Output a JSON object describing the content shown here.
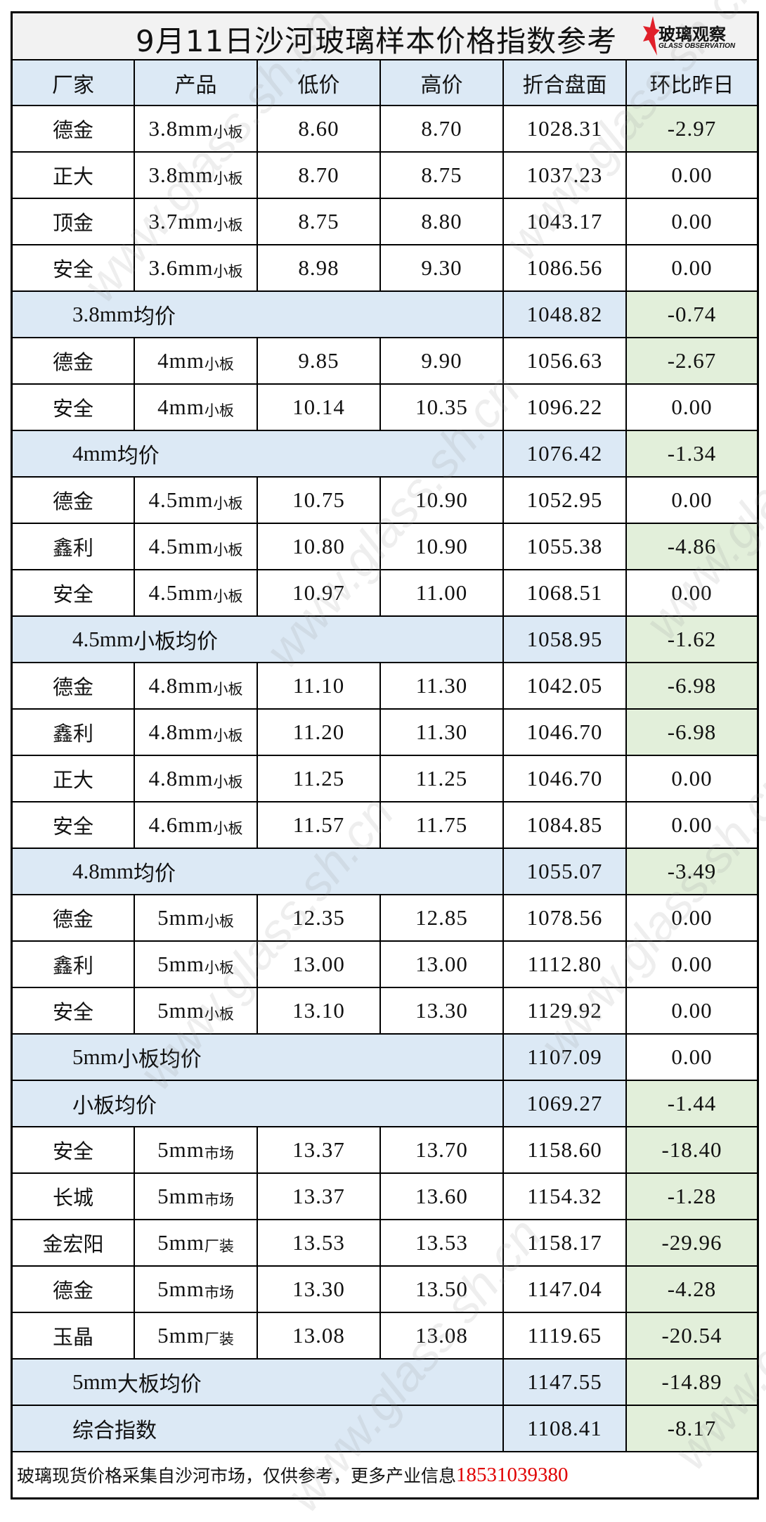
{
  "title": "9月11日沙河玻璃样本价格指数参考",
  "logo": {
    "cn": "玻璃观察",
    "en": "GLASS OBSERVATION",
    "color": "#e0202a"
  },
  "watermark": "www.glass.sh.cn",
  "colors": {
    "header_bg": "#dce9f5",
    "negative_bg": "#e2efda",
    "title_bg": "#f2f2f2",
    "phone": "#e00000"
  },
  "headers": [
    "厂家",
    "产品",
    "低价",
    "高价",
    "折合盘面",
    "环比昨日"
  ],
  "rows": [
    {
      "type": "item",
      "maker": "德金",
      "spec": "3.8mm",
      "kind": "小板",
      "low": "8.60",
      "high": "8.70",
      "index": "1028.31",
      "change": "-2.97"
    },
    {
      "type": "item",
      "maker": "正大",
      "spec": "3.8mm",
      "kind": "小板",
      "low": "8.70",
      "high": "8.75",
      "index": "1037.23",
      "change": "0.00"
    },
    {
      "type": "item",
      "maker": "顶金",
      "spec": "3.7mm",
      "kind": "小板",
      "low": "8.75",
      "high": "8.80",
      "index": "1043.17",
      "change": "0.00"
    },
    {
      "type": "item",
      "maker": "安全",
      "spec": "3.6mm",
      "kind": "小板",
      "low": "8.98",
      "high": "9.30",
      "index": "1086.56",
      "change": "0.00"
    },
    {
      "type": "avg",
      "spec": "3.8mm",
      "label": "均价",
      "index": "1048.82",
      "change": "-0.74"
    },
    {
      "type": "item",
      "maker": "德金",
      "spec": "4mm",
      "kind": "小板",
      "low": "9.85",
      "high": "9.90",
      "index": "1056.63",
      "change": "-2.67"
    },
    {
      "type": "item",
      "maker": "安全",
      "spec": "4mm",
      "kind": "小板",
      "low": "10.14",
      "high": "10.35",
      "index": "1096.22",
      "change": "0.00"
    },
    {
      "type": "avg",
      "spec": "4mm",
      "label": "均价",
      "index": "1076.42",
      "change": "-1.34"
    },
    {
      "type": "item",
      "maker": "德金",
      "spec": "4.5mm",
      "kind": "小板",
      "low": "10.75",
      "high": "10.90",
      "index": "1052.95",
      "change": "0.00"
    },
    {
      "type": "item",
      "maker": "鑫利",
      "spec": "4.5mm",
      "kind": "小板",
      "low": "10.80",
      "high": "10.90",
      "index": "1055.38",
      "change": "-4.86"
    },
    {
      "type": "item",
      "maker": "安全",
      "spec": "4.5mm",
      "kind": "小板",
      "low": "10.97",
      "high": "11.00",
      "index": "1068.51",
      "change": "0.00"
    },
    {
      "type": "avg",
      "spec": "4.5mm",
      "label": "小板均价",
      "index": "1058.95",
      "change": "-1.62"
    },
    {
      "type": "item",
      "maker": "德金",
      "spec": "4.8mm",
      "kind": "小板",
      "low": "11.10",
      "high": "11.30",
      "index": "1042.05",
      "change": "-6.98"
    },
    {
      "type": "item",
      "maker": "鑫利",
      "spec": "4.8mm",
      "kind": "小板",
      "low": "11.20",
      "high": "11.30",
      "index": "1046.70",
      "change": "-6.98"
    },
    {
      "type": "item",
      "maker": "正大",
      "spec": "4.8mm",
      "kind": "小板",
      "low": "11.25",
      "high": "11.25",
      "index": "1046.70",
      "change": "0.00"
    },
    {
      "type": "item",
      "maker": "安全",
      "spec": "4.6mm",
      "kind": "小板",
      "low": "11.57",
      "high": "11.75",
      "index": "1084.85",
      "change": "0.00"
    },
    {
      "type": "avg",
      "spec": "4.8mm",
      "label": "均价",
      "index": "1055.07",
      "change": "-3.49"
    },
    {
      "type": "item",
      "maker": "德金",
      "spec": "5mm",
      "kind": "小板",
      "low": "12.35",
      "high": "12.85",
      "index": "1078.56",
      "change": "0.00"
    },
    {
      "type": "item",
      "maker": "鑫利",
      "spec": "5mm",
      "kind": "小板",
      "low": "13.00",
      "high": "13.00",
      "index": "1112.80",
      "change": "0.00"
    },
    {
      "type": "item",
      "maker": "安全",
      "spec": "5mm",
      "kind": "小板",
      "low": "13.10",
      "high": "13.30",
      "index": "1129.92",
      "change": "0.00"
    },
    {
      "type": "avg",
      "spec": "5mm",
      "label": "小板均价",
      "index": "1107.09",
      "change": "0.00"
    },
    {
      "type": "avg",
      "spec": "",
      "label": "小板均价",
      "index": "1069.27",
      "change": "-1.44"
    },
    {
      "type": "item",
      "maker": "安全",
      "spec": "5mm",
      "kind": "市场",
      "low": "13.37",
      "high": "13.70",
      "index": "1158.60",
      "change": "-18.40"
    },
    {
      "type": "item",
      "maker": "长城",
      "spec": "5mm",
      "kind": "市场",
      "low": "13.37",
      "high": "13.60",
      "index": "1154.32",
      "change": "-1.28"
    },
    {
      "type": "item",
      "maker": "金宏阳",
      "spec": "5mm",
      "kind": "厂装",
      "low": "13.53",
      "high": "13.53",
      "index": "1158.17",
      "change": "-29.96"
    },
    {
      "type": "item",
      "maker": "德金",
      "spec": "5mm",
      "kind": "市场",
      "low": "13.30",
      "high": "13.50",
      "index": "1147.04",
      "change": "-4.28"
    },
    {
      "type": "item",
      "maker": "玉晶",
      "spec": "5mm",
      "kind": "厂装",
      "low": "13.08",
      "high": "13.08",
      "index": "1119.65",
      "change": "-20.54"
    },
    {
      "type": "avg",
      "spec": "5mm",
      "label": "大板均价",
      "index": "1147.55",
      "change": "-14.89"
    },
    {
      "type": "avg",
      "spec": "",
      "label": "综合指数",
      "index": "1108.41",
      "change": "-8.17"
    }
  ],
  "footer": {
    "text": "玻璃现货价格采集自沙河市场，仅供参考，更多产业信息",
    "phone": "18531039380"
  }
}
